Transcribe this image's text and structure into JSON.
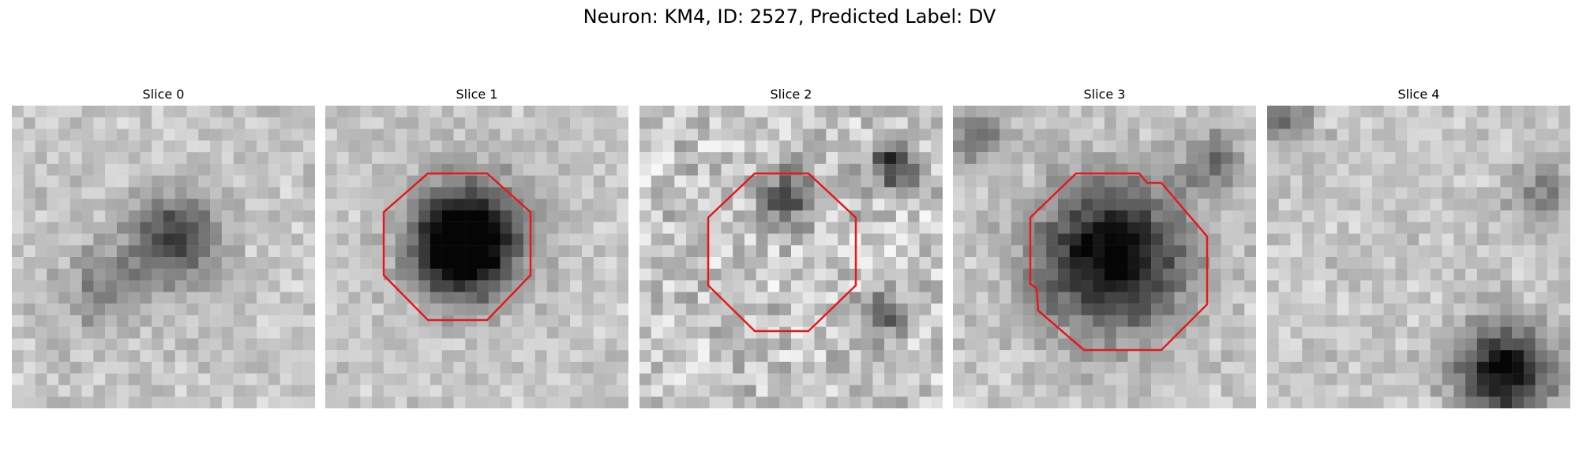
{
  "figure": {
    "title": "Neuron: KM4, ID: 2527, Predicted Label: DV"
  },
  "panels": [
    {
      "title": "Slice 0",
      "roi": false,
      "seed": 101,
      "blobs": [
        [
          0.54,
          0.44,
          0.1,
          0.55
        ],
        [
          0.3,
          0.6,
          0.1,
          0.25
        ]
      ],
      "noise": 0.18
    },
    {
      "title": "Slice 1",
      "roi": true,
      "seed": 202,
      "blobs": [
        [
          0.47,
          0.43,
          0.13,
          0.75
        ],
        [
          0.44,
          0.5,
          0.1,
          0.45
        ]
      ],
      "noise": 0.16
    },
    {
      "title": "Slice 2",
      "roi": true,
      "seed": 303,
      "blobs": [
        [
          0.48,
          0.3,
          0.06,
          0.45
        ],
        [
          0.84,
          0.2,
          0.06,
          0.55
        ],
        [
          0.8,
          0.7,
          0.06,
          0.35
        ]
      ],
      "noise": 0.34
    },
    {
      "title": "Slice 3",
      "roi": true,
      "seed": 404,
      "blobs": [
        [
          0.52,
          0.5,
          0.17,
          0.8
        ],
        [
          0.08,
          0.1,
          0.06,
          0.35
        ],
        [
          0.86,
          0.18,
          0.07,
          0.35
        ]
      ],
      "noise": 0.18
    },
    {
      "title": "Slice 4",
      "roi": false,
      "seed": 505,
      "blobs": [
        [
          0.78,
          0.88,
          0.11,
          0.75
        ],
        [
          0.06,
          0.05,
          0.06,
          0.35
        ],
        [
          0.9,
          0.3,
          0.07,
          0.3
        ]
      ],
      "noise": 0.18
    }
  ],
  "colors": {
    "roi_outline": "#e31a1c"
  }
}
